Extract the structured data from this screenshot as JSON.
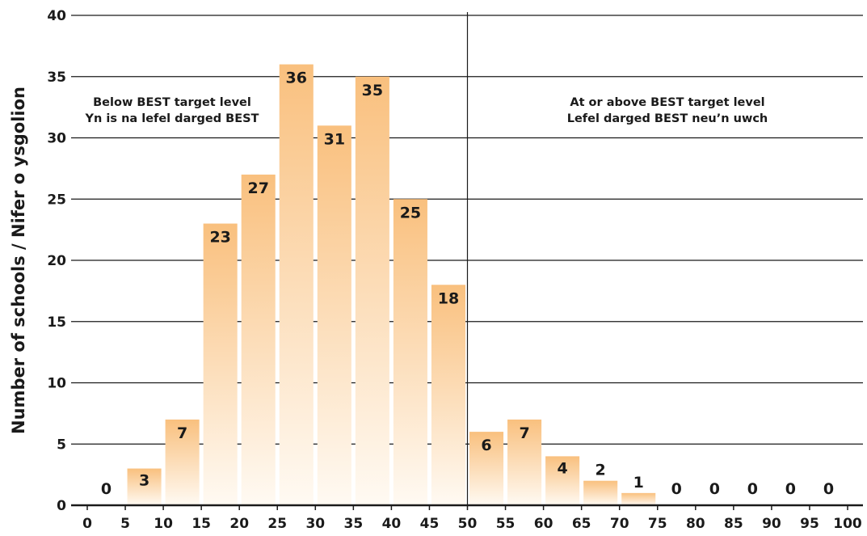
{
  "chart_data": {
    "type": "bar",
    "ylabel": "Number of schools / Nifer o ysgolion",
    "xlabel": "",
    "ylim": [
      0,
      40
    ],
    "yticks": [
      "0",
      "5",
      "10",
      "15",
      "20",
      "25",
      "30",
      "35",
      "40"
    ],
    "xticks": [
      "0",
      "5",
      "10",
      "15",
      "20",
      "25",
      "30",
      "35",
      "40",
      "45",
      "50",
      "55",
      "60",
      "65",
      "70",
      "75",
      "80",
      "85",
      "90",
      "95",
      "100"
    ],
    "bins": [
      [
        0,
        5
      ],
      [
        5,
        10
      ],
      [
        10,
        15
      ],
      [
        15,
        20
      ],
      [
        20,
        25
      ],
      [
        25,
        30
      ],
      [
        30,
        35
      ],
      [
        35,
        40
      ],
      [
        40,
        45
      ],
      [
        45,
        50
      ],
      [
        50,
        55
      ],
      [
        55,
        60
      ],
      [
        60,
        65
      ],
      [
        65,
        70
      ],
      [
        70,
        75
      ],
      [
        75,
        80
      ],
      [
        80,
        85
      ],
      [
        85,
        90
      ],
      [
        90,
        95
      ],
      [
        95,
        100
      ]
    ],
    "values": [
      0,
      3,
      7,
      23,
      27,
      36,
      31,
      35,
      25,
      18,
      6,
      7,
      4,
      2,
      1,
      0,
      0,
      0,
      0,
      0
    ],
    "value_labels": [
      "0",
      "3",
      "7",
      "23",
      "27",
      "36",
      "31",
      "35",
      "25",
      "18",
      "6",
      "7",
      "4",
      "2",
      "1",
      "0",
      "0",
      "0",
      "0",
      "0"
    ],
    "threshold_x": 50,
    "grid": true,
    "bar_gradient": {
      "top": "#f9c07e",
      "bottom": "#fffaf3"
    },
    "regions": {
      "below": [
        "Below BEST target level",
        "Yn is na lefel darged BEST"
      ],
      "above": [
        "At or above BEST target level",
        "Lefel darged BEST neu’n uwch"
      ]
    }
  }
}
